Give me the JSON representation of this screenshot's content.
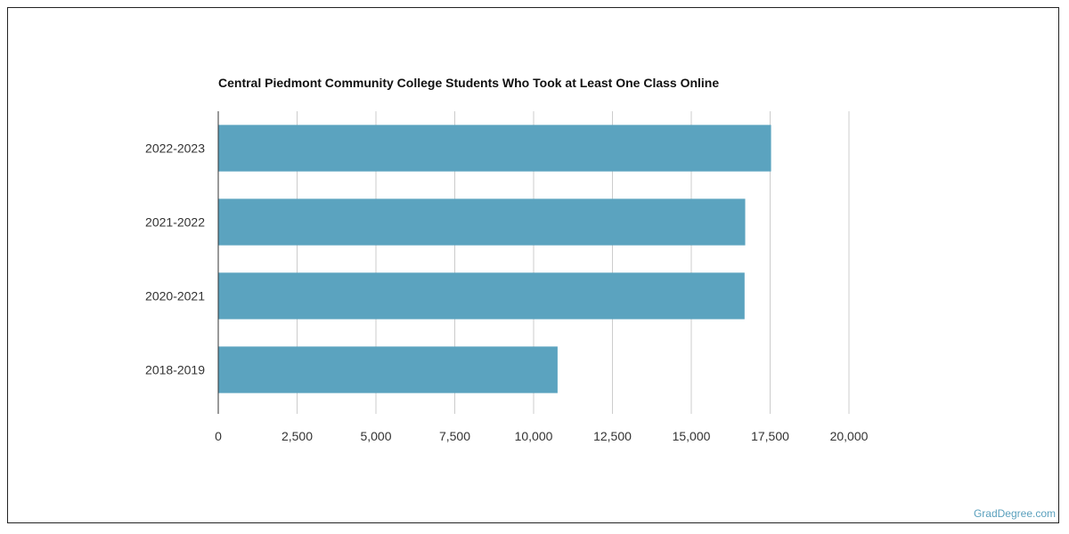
{
  "chart_data": {
    "type": "bar",
    "orientation": "horizontal",
    "title": "Central Piedmont Community College Students Who Took at Least One Class Online",
    "categories": [
      "2022-2023",
      "2021-2022",
      "2020-2021",
      "2018-2019"
    ],
    "values": [
      17530,
      16710,
      16690,
      10760
    ],
    "xlim": [
      0,
      20000
    ],
    "xticks": [
      0,
      2500,
      5000,
      7500,
      10000,
      12500,
      15000,
      17500,
      20000
    ],
    "xtick_labels": [
      "0",
      "2,500",
      "5,000",
      "7,500",
      "10,000",
      "12,500",
      "15,000",
      "17,500",
      "20,000"
    ],
    "grid": "vertical",
    "bar_color": "#5ba3bf",
    "grid_color": "#cccccc"
  },
  "watermark": "GradDegree.com"
}
